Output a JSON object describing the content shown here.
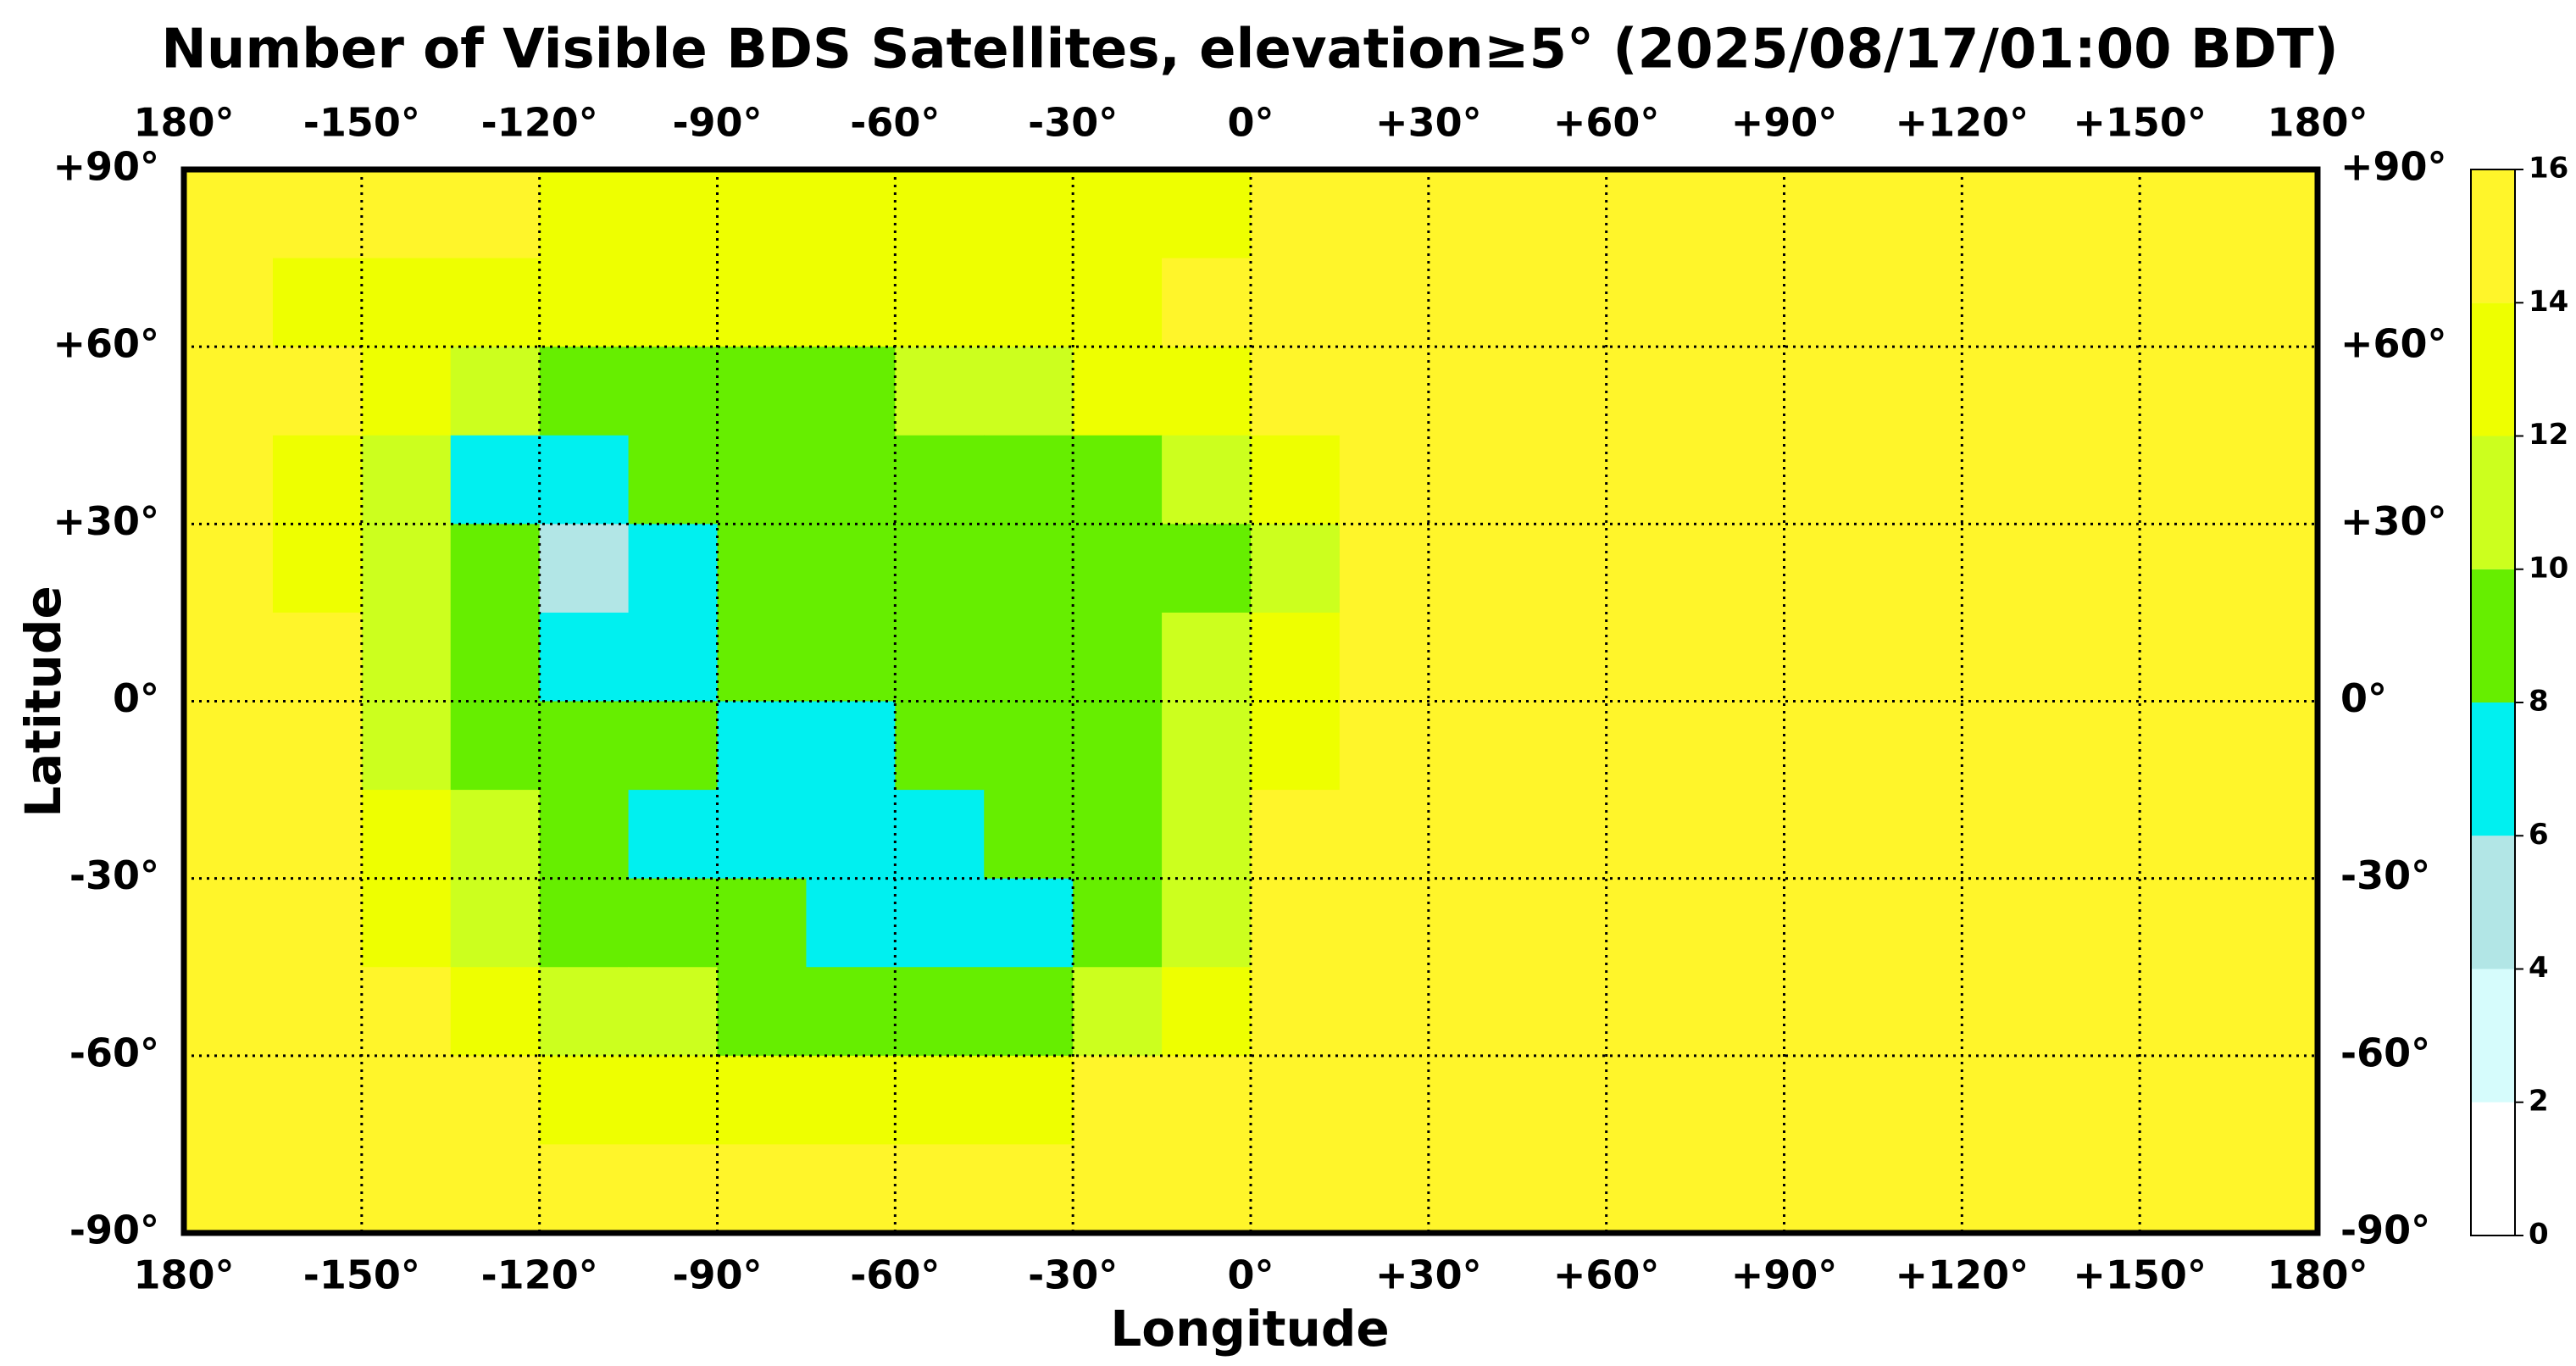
{
  "chart_data": {
    "type": "heatmap",
    "title": "Number of Visible BDS Satellites, elevation≥5° (2025/08/17/01:00 BDT)",
    "x_label": "Longitude",
    "y_label": "Latitude",
    "xlim": [
      -180,
      180
    ],
    "ylim": [
      -90,
      90
    ],
    "xticks": [
      {
        "value": -180,
        "label": "180°"
      },
      {
        "value": -150,
        "label": "-150°"
      },
      {
        "value": -120,
        "label": "-120°"
      },
      {
        "value": -90,
        "label": "-90°"
      },
      {
        "value": -60,
        "label": "-60°"
      },
      {
        "value": -30,
        "label": "-30°"
      },
      {
        "value": 0,
        "label": "0°"
      },
      {
        "value": 30,
        "label": "+30°"
      },
      {
        "value": 60,
        "label": "+60°"
      },
      {
        "value": 90,
        "label": "+90°"
      },
      {
        "value": 120,
        "label": "+120°"
      },
      {
        "value": 150,
        "label": "+150°"
      },
      {
        "value": 180,
        "label": "180°"
      }
    ],
    "yticks": [
      {
        "value": 90,
        "label": "+90°"
      },
      {
        "value": 60,
        "label": "+60°"
      },
      {
        "value": 30,
        "label": "+30°"
      },
      {
        "value": 0,
        "label": "0°"
      },
      {
        "value": -30,
        "label": "-30°"
      },
      {
        "value": -60,
        "label": "-60°"
      },
      {
        "value": -90,
        "label": "-90°"
      }
    ],
    "grid": true,
    "colorbar": {
      "ticks": [
        0,
        2,
        4,
        6,
        8,
        10,
        12,
        14,
        16
      ],
      "colors": [
        "#ffffff",
        "#d6fcfc",
        "#b2e6e6",
        "#00f0f0",
        "#66ee00",
        "#ccff1e",
        "#eeff00",
        "#fff52a"
      ]
    },
    "z": [
      [
        15,
        15,
        15,
        15,
        13,
        13,
        13,
        13,
        13,
        13,
        13,
        13,
        15,
        15,
        15,
        15,
        15,
        15,
        15,
        15,
        15,
        15,
        15,
        15
      ],
      [
        15,
        13,
        13,
        13,
        13,
        13,
        13,
        13,
        13,
        13,
        13,
        15,
        15,
        15,
        15,
        15,
        15,
        15,
        15,
        15,
        15,
        15,
        15,
        15
      ],
      [
        15,
        15,
        13,
        11,
        9,
        9,
        9,
        9,
        11,
        11,
        13,
        13,
        15,
        15,
        15,
        15,
        15,
        15,
        15,
        15,
        15,
        15,
        15,
        15
      ],
      [
        15,
        13,
        11,
        7,
        7,
        9,
        9,
        9,
        9,
        9,
        9,
        11,
        13,
        15,
        15,
        15,
        15,
        15,
        15,
        15,
        15,
        15,
        15,
        15
      ],
      [
        15,
        13,
        11,
        9,
        5,
        7,
        9,
        9,
        9,
        9,
        9,
        9,
        11,
        15,
        15,
        15,
        15,
        15,
        15,
        15,
        15,
        15,
        15,
        15
      ],
      [
        15,
        15,
        11,
        9,
        7,
        7,
        9,
        9,
        9,
        9,
        9,
        11,
        13,
        15,
        15,
        15,
        15,
        15,
        15,
        15,
        15,
        15,
        15,
        15
      ],
      [
        15,
        15,
        11,
        9,
        9,
        9,
        7,
        7,
        9,
        9,
        9,
        11,
        13,
        15,
        15,
        15,
        15,
        15,
        15,
        15,
        15,
        15,
        15,
        15
      ],
      [
        15,
        15,
        13,
        11,
        9,
        7,
        7,
        7,
        7,
        9,
        9,
        11,
        15,
        15,
        15,
        15,
        15,
        15,
        15,
        15,
        15,
        15,
        15,
        15
      ],
      [
        15,
        15,
        13,
        11,
        9,
        9,
        9,
        7,
        7,
        7,
        9,
        11,
        15,
        15,
        15,
        15,
        15,
        15,
        15,
        15,
        15,
        15,
        15,
        15
      ],
      [
        15,
        15,
        15,
        13,
        11,
        11,
        9,
        9,
        9,
        9,
        11,
        13,
        15,
        15,
        15,
        15,
        15,
        15,
        15,
        15,
        15,
        15,
        15,
        15
      ],
      [
        15,
        15,
        15,
        15,
        13,
        13,
        13,
        13,
        13,
        13,
        15,
        15,
        15,
        15,
        15,
        15,
        15,
        15,
        15,
        15,
        15,
        15,
        15,
        15
      ],
      [
        15,
        15,
        15,
        15,
        15,
        15,
        15,
        15,
        15,
        15,
        15,
        15,
        15,
        15,
        15,
        15,
        15,
        15,
        15,
        15,
        15,
        15,
        15,
        15
      ]
    ]
  }
}
